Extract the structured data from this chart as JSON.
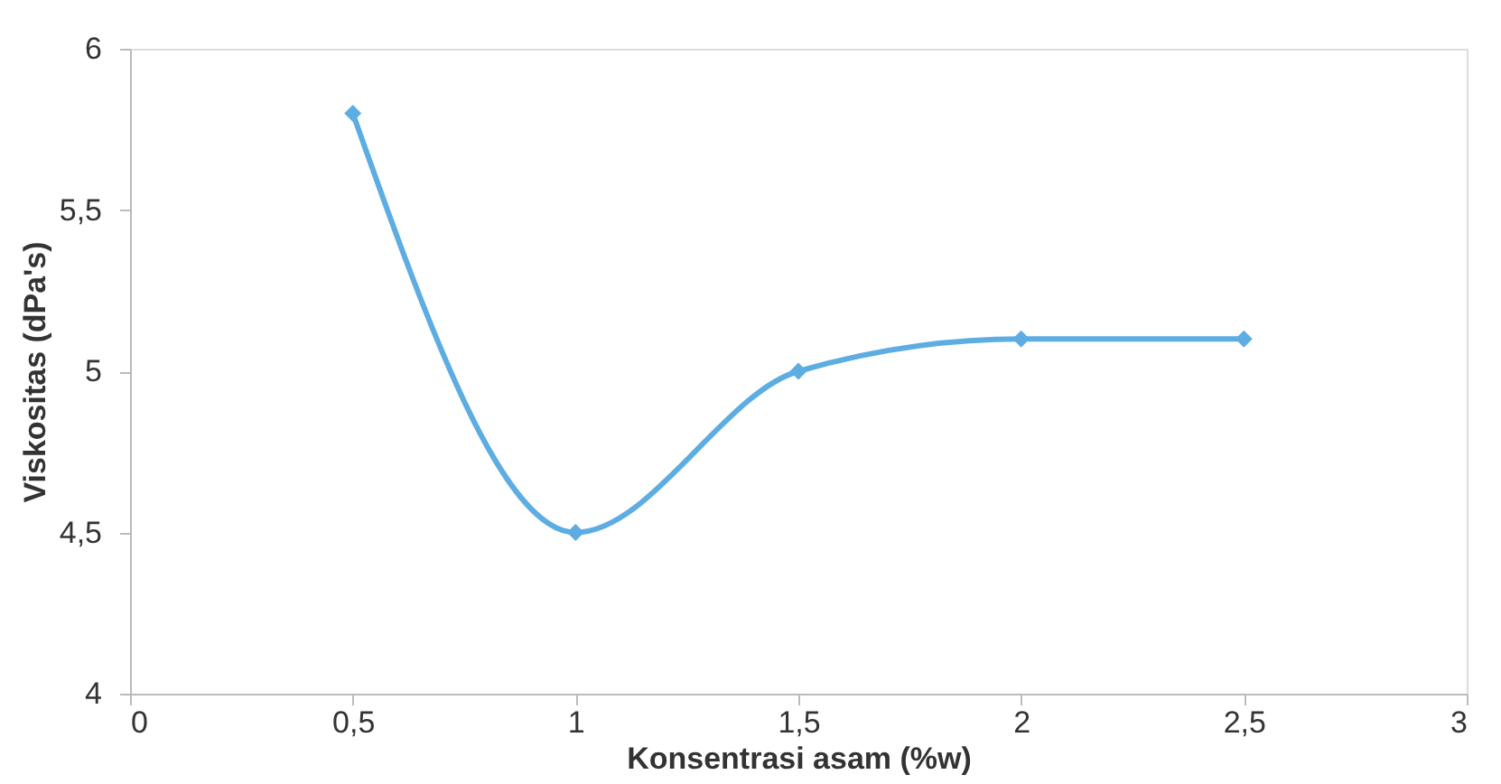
{
  "chart_data": {
    "type": "line",
    "xlabel": "Konsentrasi asam (%w)",
    "ylabel": "Viskositas (dPa's)",
    "x": [
      0.5,
      1,
      1.5,
      2,
      2.5
    ],
    "series": [
      {
        "color": "#5dade2",
        "values": [
          5.8,
          4.5,
          5.0,
          5.1,
          5.1
        ]
      }
    ],
    "xlim": [
      0,
      3
    ],
    "xticks": [
      0,
      {
        "value": 0.5,
        "label": "0,5"
      },
      1,
      {
        "value": 1.5,
        "label": "1,5"
      },
      2,
      {
        "value": 2.5,
        "label": "2,5"
      },
      3
    ],
    "ylim": [
      4,
      6
    ],
    "yticks": [
      4,
      {
        "value": 4.5,
        "label": "4,5"
      },
      5,
      {
        "value": 5.5,
        "label": "5,5"
      },
      6
    ],
    "marker": "diamond",
    "line_style": "solid",
    "grid": false,
    "legend": false
  }
}
